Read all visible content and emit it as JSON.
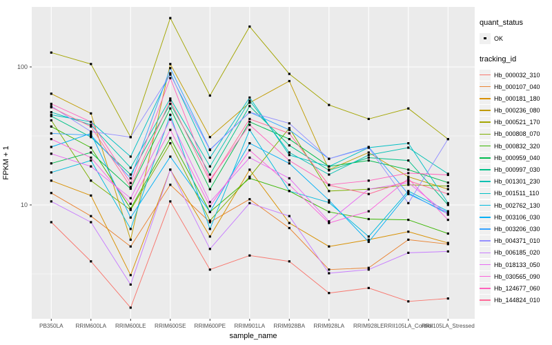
{
  "figure": {
    "background": "#FFFFFF",
    "panel_background": "#EBEBEB",
    "grid_color": "#FFFFFF",
    "tick_label_color": "#4D4D4D",
    "axis_tick_color": "#333333",
    "point_color": "#000000"
  },
  "legend": {
    "quant_status_title": "quant_status",
    "quant_status_label": "OK",
    "quant_status_marker": "black-point-icon",
    "tracking_id_title": "tracking_id"
  },
  "chart_data": {
    "type": "line",
    "title": "",
    "xlabel": "sample_name",
    "ylabel": "FPKM + 1",
    "x_categories": [
      "PB350LA",
      "RRIM600LA",
      "RRIM600LE",
      "RRIM600SE",
      "RRIM600PE",
      "RRIM901LA",
      "RRIM928BA",
      "RRIM928LA",
      "RRIM928LE",
      "RRII105LA_Control",
      "RRII105LA_Stressed"
    ],
    "y_scale": "log10",
    "ylim": [
      1.5,
      272
    ],
    "y_tick_labels": [
      "100",
      "10"
    ],
    "y_tick_values": [
      100,
      10
    ],
    "y_minor_gridline_values": [
      31.62,
      3.162
    ],
    "grid": true,
    "legend_position": "right",
    "point_shape": "small-black-square",
    "quant_status": "OK",
    "series": [
      {
        "name": "Hb_000032_310",
        "color": "#F8766D",
        "values": [
          7.5,
          3.9,
          1.8,
          10.6,
          3.4,
          4.3,
          3.9,
          2.3,
          2.5,
          2.0,
          2.1
        ]
      },
      {
        "name": "Hb_000107_040",
        "color": "#EA8331",
        "values": [
          12.2,
          8.3,
          5.0,
          14,
          7.5,
          11,
          6.8,
          3.4,
          3.5,
          5.6,
          5.2
        ]
      },
      {
        "name": "Hb_000181_180",
        "color": "#D89000",
        "values": [
          15,
          11.7,
          3.1,
          18,
          5.9,
          18,
          7.4,
          5.0,
          5.6,
          6.4,
          5.3
        ]
      },
      {
        "name": "Hb_000236_080",
        "color": "#C09B00",
        "values": [
          64,
          46,
          5.6,
          105,
          31,
          55,
          79,
          18,
          24,
          16,
          13
        ]
      },
      {
        "name": "Hb_000521_170",
        "color": "#A3A500",
        "values": [
          127,
          105,
          31,
          226,
          62,
          196,
          89,
          53,
          42,
          50,
          30
        ]
      },
      {
        "name": "Hb_000808_070",
        "color": "#7CAE00",
        "values": [
          41,
          15,
          9.2,
          28,
          7.7,
          16,
          36,
          12.6,
          13,
          14,
          13.7
        ]
      },
      {
        "name": "Hb_000832_320",
        "color": "#39B600",
        "values": [
          37,
          26,
          9.4,
          30.5,
          8.9,
          15.6,
          12.6,
          8.9,
          7.9,
          7.8,
          6.2
        ]
      },
      {
        "name": "Hb_000959_040",
        "color": "#00BB4E",
        "values": [
          20,
          24,
          13.1,
          50,
          13,
          40,
          30,
          19,
          21,
          18,
          14.5
        ]
      },
      {
        "name": "Hb_000997_030",
        "color": "#00C087",
        "values": [
          44,
          31,
          16.6,
          54,
          16.6,
          52,
          27,
          17.8,
          22,
          21,
          10
        ]
      },
      {
        "name": "Hb_001301_230",
        "color": "#00C0B2",
        "values": [
          47,
          38,
          18.6,
          59,
          19,
          57,
          24,
          16.6,
          23,
          26,
          16.8
        ]
      },
      {
        "name": "Hb_001511_110",
        "color": "#00BFC4",
        "values": [
          45,
          40,
          22.4,
          90,
          22,
          60,
          23,
          19,
          26,
          28,
          10.3
        ]
      },
      {
        "name": "Hb_002762_130",
        "color": "#00BADE",
        "values": [
          17.2,
          21,
          6.7,
          45,
          6.7,
          35,
          12.6,
          10.4,
          5.9,
          12.6,
          9.0
        ]
      },
      {
        "name": "Hb_003106_030",
        "color": "#00B0F6",
        "values": [
          26.3,
          33,
          8.1,
          22.4,
          8.9,
          28,
          20,
          10.8,
          5.4,
          12.2,
          8.6
        ]
      },
      {
        "name": "Hb_003206_030",
        "color": "#35A2FF",
        "values": [
          33,
          32,
          15.6,
          98,
          25.2,
          47,
          35,
          21.6,
          26.3,
          12,
          8.8
        ]
      },
      {
        "name": "Hb_004371_010",
        "color": "#9590FF",
        "values": [
          52,
          34,
          31,
          88,
          25,
          47,
          39,
          21.6,
          26,
          10.3,
          30
        ]
      },
      {
        "name": "Hb_006185_020",
        "color": "#C77CFF",
        "values": [
          10.6,
          7.5,
          2.65,
          18,
          4.8,
          10.3,
          8.3,
          3.2,
          3.4,
          4.5,
          4.6
        ]
      },
      {
        "name": "Hb_018133_050",
        "color": "#E76BF3",
        "values": [
          23.5,
          19,
          11.2,
          41.6,
          10.5,
          22,
          15.6,
          7.6,
          13,
          14.5,
          8.5
        ]
      },
      {
        "name": "Hb_030565_090",
        "color": "#FA62DB",
        "values": [
          30,
          22,
          10.2,
          35,
          9.8,
          24.9,
          14,
          7.4,
          9,
          15.5,
          7.8
        ]
      },
      {
        "name": "Hb_124677_060",
        "color": "#FF62BC",
        "values": [
          54,
          40,
          14.4,
          83,
          15.2,
          38,
          21,
          14,
          15,
          17,
          16.5
        ]
      },
      {
        "name": "Hb_144824_010",
        "color": "#FF6A98",
        "values": [
          51,
          37,
          13.5,
          57,
          14.8,
          42,
          33,
          13.9,
          12,
          15,
          12
        ]
      }
    ]
  }
}
